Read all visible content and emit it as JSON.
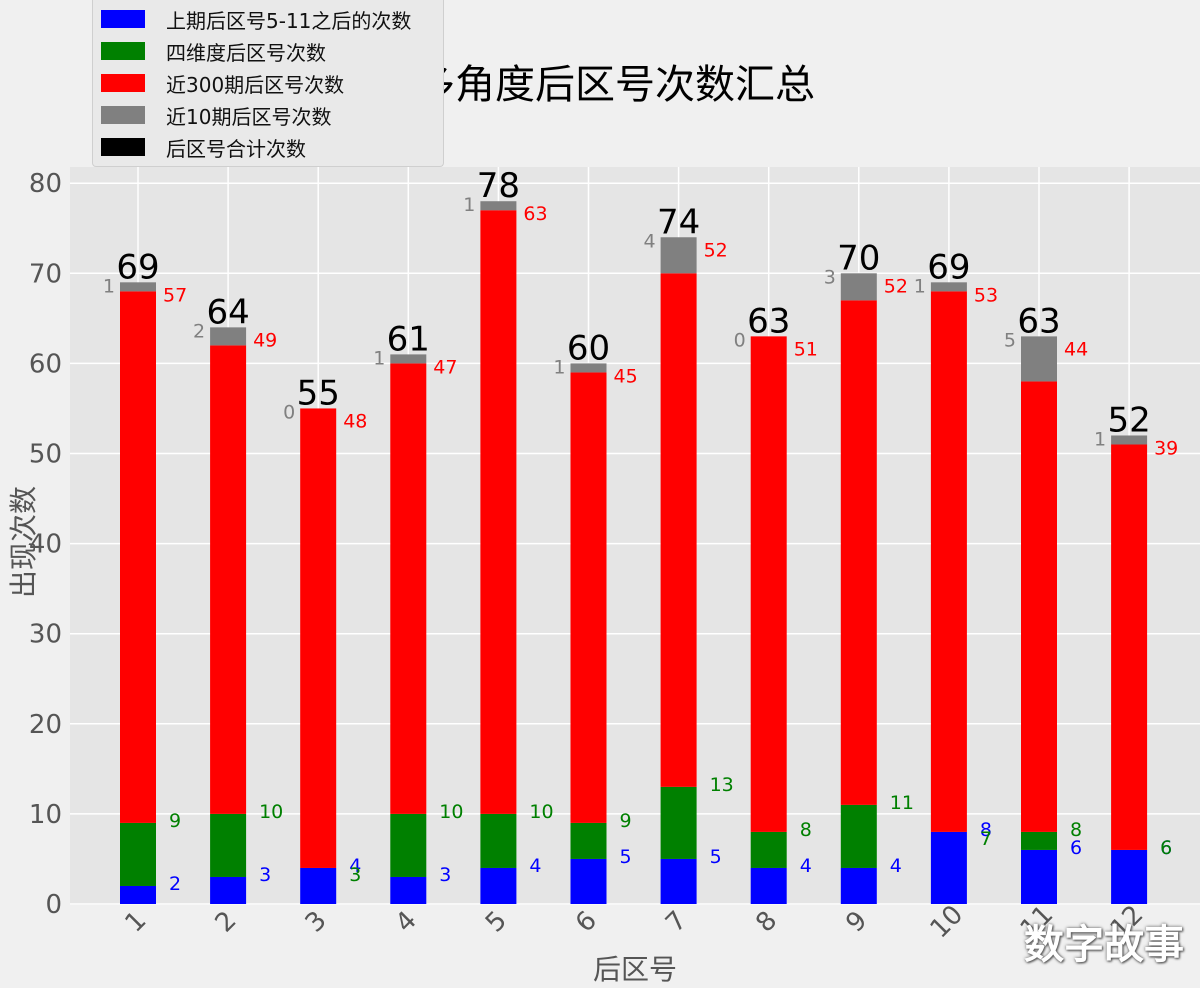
{
  "chart_data": {
    "type": "bar",
    "title": "多角度后区号次数汇总",
    "xlabel": "后区号",
    "ylabel": "出现次数",
    "categories": [
      "1",
      "2",
      "3",
      "4",
      "5",
      "6",
      "7",
      "8",
      "9",
      "10",
      "11",
      "12"
    ],
    "ylim": [
      0,
      82
    ],
    "yticks": [
      0,
      10,
      20,
      30,
      40,
      50,
      60,
      70,
      80
    ],
    "grid": true,
    "legend_position": "top-left",
    "series": [
      {
        "name": "上期后区号5-11之后的次数",
        "color": "#0000ff",
        "values": [
          2,
          3,
          4,
          3,
          4,
          5,
          5,
          4,
          4,
          8,
          6,
          6
        ]
      },
      {
        "name": "四维度后区号次数",
        "color": "#008000",
        "values": [
          9,
          10,
          3,
          10,
          10,
          9,
          13,
          8,
          11,
          7,
          8,
          6
        ]
      },
      {
        "name": "近300期后区号次数",
        "color": "#ff0000",
        "values": [
          57,
          49,
          48,
          47,
          63,
          45,
          52,
          51,
          52,
          53,
          44,
          39
        ]
      },
      {
        "name": "近10期后区号次数",
        "color": "#808080",
        "values": [
          1,
          2,
          0,
          1,
          1,
          1,
          4,
          0,
          3,
          1,
          5,
          1
        ]
      },
      {
        "name": "后区号合计次数",
        "color": "#000000",
        "values": [
          69,
          64,
          55,
          61,
          78,
          60,
          74,
          63,
          70,
          69,
          63,
          52
        ]
      }
    ]
  },
  "watermark": "数字故事"
}
